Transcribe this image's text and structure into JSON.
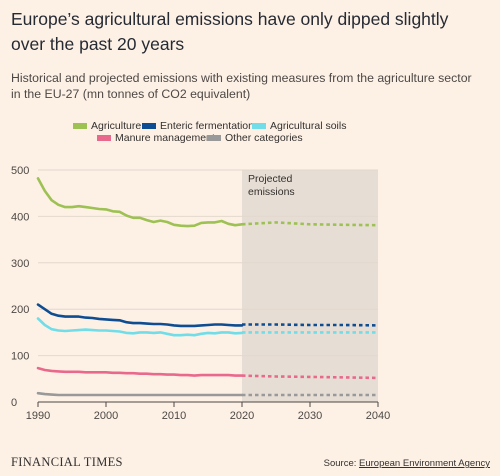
{
  "header": {
    "title": "Europe’s agricultural emissions have only dipped slightly over the past 20 years",
    "subtitle": "Historical and projected emissions with existing measures from the agriculture sector in the EU-27 (mn tonnes of CO2 equivalent)"
  },
  "footer": {
    "brand": "FINANCIAL TIMES",
    "source_prefix": "Source: ",
    "source_link": "European Environment Agency"
  },
  "colors": {
    "background": "#fdf1e6",
    "projection_band": "#e6ddd4",
    "grid": "#e3d8cd",
    "axis": "#4d4845"
  },
  "chart_data": {
    "type": "line",
    "title": "Europe’s agricultural emissions have only dipped slightly over the past 20 years",
    "xlabel": "",
    "ylabel": "",
    "xlim": [
      1990,
      2040
    ],
    "ylim": [
      0,
      500
    ],
    "x_ticks": [
      1990,
      2000,
      2010,
      2020,
      2030,
      2040
    ],
    "y_ticks": [
      0,
      100,
      200,
      300,
      400,
      500
    ],
    "grid": true,
    "legend_position": "top",
    "projection": {
      "start": 2020,
      "end": 2040,
      "label": "Projected emissions"
    },
    "series": [
      {
        "name": "Agriculture",
        "color": "#9dc153",
        "historical": {
          "x": [
            1990,
            1991,
            1992,
            1993,
            1994,
            1995,
            1996,
            1997,
            1998,
            1999,
            2000,
            2001,
            2002,
            2003,
            2004,
            2005,
            2006,
            2007,
            2008,
            2009,
            2010,
            2011,
            2012,
            2013,
            2014,
            2015,
            2016,
            2017,
            2018,
            2019,
            2020
          ],
          "y": [
            482,
            455,
            435,
            425,
            420,
            420,
            422,
            420,
            418,
            416,
            415,
            411,
            410,
            402,
            397,
            397,
            392,
            388,
            391,
            388,
            382,
            380,
            379,
            380,
            386,
            387,
            387,
            390,
            384,
            381,
            383
          ]
        },
        "projected": {
          "x": [
            2020,
            2025,
            2030,
            2035,
            2040
          ],
          "y": [
            383,
            387,
            383,
            382,
            381
          ]
        }
      },
      {
        "name": "Enteric fermentation",
        "color": "#0f4d92",
        "historical": {
          "x": [
            1990,
            1991,
            1992,
            1993,
            1994,
            1995,
            1996,
            1997,
            1998,
            1999,
            2000,
            2001,
            2002,
            2003,
            2004,
            2005,
            2006,
            2007,
            2008,
            2009,
            2010,
            2011,
            2012,
            2013,
            2014,
            2015,
            2016,
            2017,
            2018,
            2019,
            2020
          ],
          "y": [
            210,
            200,
            190,
            186,
            184,
            184,
            184,
            182,
            181,
            179,
            178,
            177,
            176,
            172,
            170,
            170,
            169,
            168,
            168,
            167,
            165,
            164,
            164,
            164,
            165,
            166,
            167,
            167,
            166,
            165,
            165
          ]
        },
        "projected": {
          "x": [
            2020,
            2025,
            2030,
            2035,
            2040
          ],
          "y": [
            167,
            167,
            166,
            166,
            165
          ]
        }
      },
      {
        "name": "Agricultural soils",
        "color": "#70dde8",
        "historical": {
          "x": [
            1990,
            1991,
            1992,
            1993,
            1994,
            1995,
            1996,
            1997,
            1998,
            1999,
            2000,
            2001,
            2002,
            2003,
            2004,
            2005,
            2006,
            2007,
            2008,
            2009,
            2010,
            2011,
            2012,
            2013,
            2014,
            2015,
            2016,
            2017,
            2018,
            2019,
            2020
          ],
          "y": [
            180,
            166,
            157,
            154,
            153,
            154,
            155,
            156,
            155,
            154,
            154,
            153,
            152,
            149,
            148,
            150,
            150,
            149,
            150,
            147,
            144,
            144,
            145,
            144,
            147,
            149,
            148,
            150,
            150,
            148,
            149
          ]
        },
        "projected": {
          "x": [
            2020,
            2025,
            2030,
            2035,
            2040
          ],
          "y": [
            150,
            150,
            150,
            150,
            150
          ]
        }
      },
      {
        "name": "Manure management",
        "color": "#e9698c",
        "historical": {
          "x": [
            1990,
            1991,
            1992,
            1993,
            1994,
            1995,
            1996,
            1997,
            1998,
            1999,
            2000,
            2001,
            2002,
            2003,
            2004,
            2005,
            2006,
            2007,
            2008,
            2009,
            2010,
            2011,
            2012,
            2013,
            2014,
            2015,
            2016,
            2017,
            2018,
            2019,
            2020
          ],
          "y": [
            73,
            69,
            67,
            66,
            65,
            65,
            65,
            64,
            64,
            64,
            64,
            63,
            63,
            62,
            62,
            61,
            61,
            60,
            60,
            59,
            59,
            58,
            58,
            57,
            58,
            58,
            58,
            58,
            58,
            57,
            57
          ]
        },
        "projected": {
          "x": [
            2020,
            2025,
            2030,
            2035,
            2040
          ],
          "y": [
            57,
            55,
            54,
            53,
            52
          ]
        }
      },
      {
        "name": "Other categories",
        "color": "#999999",
        "historical": {
          "x": [
            1990,
            1991,
            1992,
            1993,
            1994,
            1995,
            1996,
            1997,
            1998,
            1999,
            2000,
            2001,
            2002,
            2003,
            2004,
            2005,
            2006,
            2007,
            2008,
            2009,
            2010,
            2011,
            2012,
            2013,
            2014,
            2015,
            2016,
            2017,
            2018,
            2019,
            2020
          ],
          "y": [
            19,
            17,
            16,
            15,
            15,
            15,
            15,
            15,
            15,
            15,
            15,
            15,
            15,
            15,
            15,
            15,
            15,
            15,
            15,
            15,
            15,
            15,
            15,
            15,
            15,
            15,
            15,
            15,
            15,
            15,
            15
          ]
        },
        "projected": {
          "x": [
            2020,
            2025,
            2030,
            2035,
            2040
          ],
          "y": [
            15,
            15,
            15,
            15,
            15
          ]
        }
      }
    ]
  }
}
